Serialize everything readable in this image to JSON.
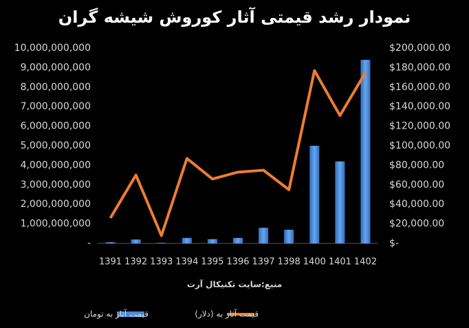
{
  "chart_data": {
    "type": "bar-line",
    "title": "نمودار رشد قیمتی آثار کوروش شیشه گران",
    "source": "منبع:سایت تکنیکال آرت",
    "categories": [
      "1391",
      "1392",
      "1393",
      "1394",
      "1395",
      "1396",
      "1397",
      "1398",
      "1400",
      "1401",
      "1402"
    ],
    "series": [
      {
        "name": "قیمت آثار  به تومان",
        "color": "#4a8ad6",
        "type": "bar",
        "values": [
          60000000,
          200000000,
          30000000,
          280000000,
          220000000,
          280000000,
          800000000,
          700000000,
          5000000000,
          4200000000,
          9400000000
        ]
      },
      {
        "name": "قیمت آثار  به (دلار)",
        "color": "#ed7d31",
        "type": "line",
        "axis": "y2",
        "values": [
          26000,
          70000,
          8000,
          87000,
          66000,
          73000,
          75000,
          55000,
          177000,
          131000,
          175000
        ]
      }
    ],
    "ylim": [
      0,
      10000000000
    ],
    "yticks": [
      {
        "value": 0,
        "label": "-"
      },
      {
        "value": 1000000000,
        "label": "1,000,000,000"
      },
      {
        "value": 2000000000,
        "label": "2,000,000,000"
      },
      {
        "value": 3000000000,
        "label": "3,000,000,000"
      },
      {
        "value": 4000000000,
        "label": "4,000,000,000"
      },
      {
        "value": 5000000000,
        "label": "5,000,000,000"
      },
      {
        "value": 6000000000,
        "label": "6,000,000,000"
      },
      {
        "value": 7000000000,
        "label": "7,000,000,000"
      },
      {
        "value": 8000000000,
        "label": "8,000,000,000"
      },
      {
        "value": 9000000000,
        "label": "9,000,000,000"
      },
      {
        "value": 10000000000,
        "label": "10,000,000,000"
      }
    ],
    "y2lim": [
      0,
      200000
    ],
    "y2ticks": [
      {
        "value": 0,
        "label": "$-"
      },
      {
        "value": 20000,
        "label": "$20,000.00"
      },
      {
        "value": 40000,
        "label": "$40,000.00"
      },
      {
        "value": 60000,
        "label": "$60,000.00"
      },
      {
        "value": 80000,
        "label": "$80,000.00"
      },
      {
        "value": 100000,
        "label": "$100,000.00"
      },
      {
        "value": 120000,
        "label": "$120,000.00"
      },
      {
        "value": 140000,
        "label": "$140,000.00"
      },
      {
        "value": 160000,
        "label": "$160,000.00"
      },
      {
        "value": 180000,
        "label": "$180,000.00"
      },
      {
        "value": 200000,
        "label": "$200,000.00"
      }
    ],
    "legend": "bottom"
  }
}
